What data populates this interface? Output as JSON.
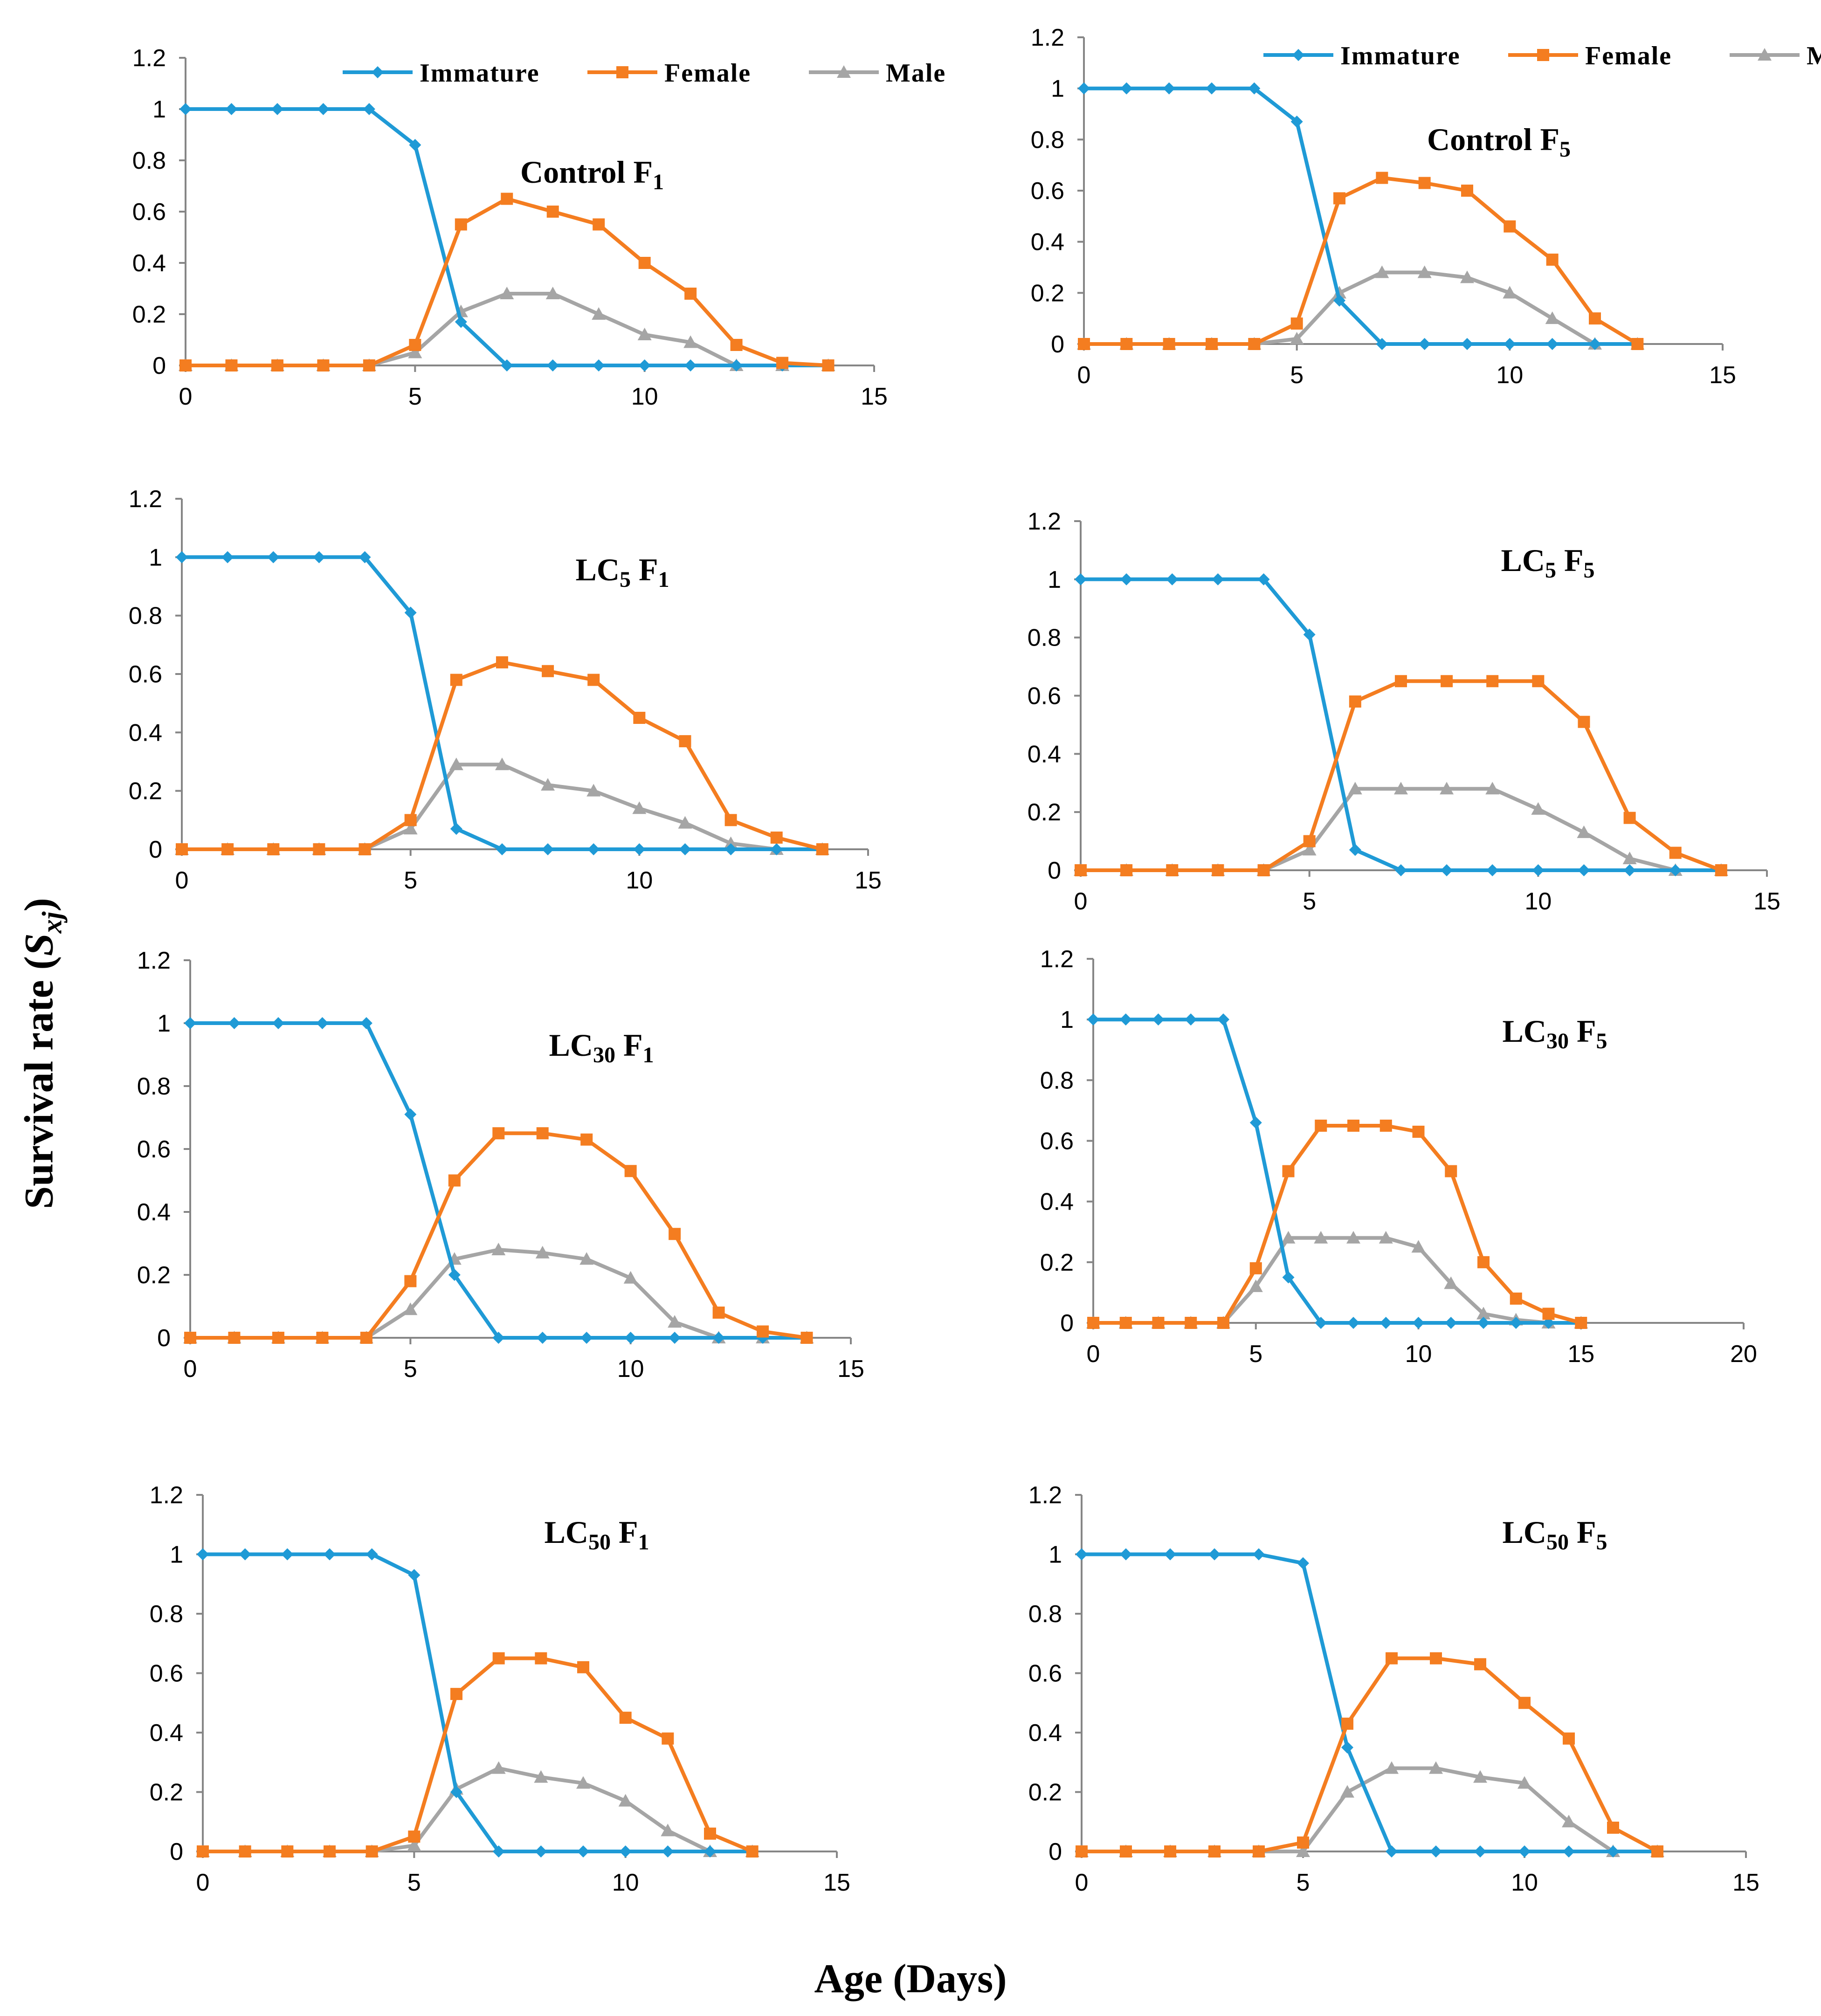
{
  "figure": {
    "xlabel": "Age (Days)",
    "ylabel_main": "Survival rate (",
    "ylabel_var": "S",
    "ylabel_sub": "xj",
    "ylabel_close": ")"
  },
  "legend": [
    {
      "name": "Immature",
      "color": "#1f9ad6",
      "marker": "diamond"
    },
    {
      "name": "Female",
      "color": "#f47d20",
      "marker": "square"
    },
    {
      "name": "Male",
      "color": "#a5a5a5",
      "marker": "triangle"
    }
  ],
  "chart_data": [
    {
      "type": "line",
      "title": "Control F1",
      "title_main": "Control ",
      "title_sub": "",
      "title_gen": "F",
      "title_gen_sub": "1",
      "xlabel": "Age (Days)",
      "ylabel": "Survival rate (Sxj)",
      "xlim": [
        0,
        15
      ],
      "xticks": [
        "0",
        "5",
        "10",
        "15"
      ],
      "ylim": [
        0,
        1.2
      ],
      "yticks": [
        "0",
        "0.2",
        "0.4",
        "0.6",
        "0.8",
        "1",
        "1.2"
      ],
      "legend_shown": true,
      "grid": false,
      "series": [
        {
          "name": "Immature",
          "x": [
            0,
            1,
            2,
            3,
            4,
            5,
            6,
            7,
            8,
            9,
            10,
            11,
            12,
            13,
            14
          ],
          "y": [
            1,
            1,
            1,
            1,
            1,
            0.86,
            0.17,
            0,
            0,
            0,
            0,
            0,
            0,
            0,
            0
          ]
        },
        {
          "name": "Female",
          "x": [
            0,
            1,
            2,
            3,
            4,
            5,
            6,
            7,
            8,
            9,
            10,
            11,
            12,
            13,
            14
          ],
          "y": [
            0,
            0,
            0,
            0,
            0,
            0.08,
            0.55,
            0.65,
            0.6,
            0.55,
            0.4,
            0.28,
            0.08,
            0.01,
            0
          ]
        },
        {
          "name": "Male",
          "x": [
            0,
            1,
            2,
            3,
            4,
            5,
            6,
            7,
            8,
            9,
            10,
            11,
            12,
            13,
            14
          ],
          "y": [
            0,
            0,
            0,
            0,
            0,
            0.05,
            0.21,
            0.28,
            0.28,
            0.2,
            0.12,
            0.09,
            0,
            0,
            0
          ]
        }
      ]
    },
    {
      "type": "line",
      "title": "Control F5",
      "title_main": "Control ",
      "title_sub": "",
      "title_gen": "F",
      "title_gen_sub": "5",
      "xlabel": "Age (Days)",
      "ylabel": "Survival rate (Sxj)",
      "xlim": [
        0,
        15
      ],
      "xticks": [
        "0",
        "5",
        "10",
        "15"
      ],
      "ylim": [
        0,
        1.2
      ],
      "yticks": [
        "0",
        "0.2",
        "0.4",
        "0.6",
        "0.8",
        "1",
        "1.2"
      ],
      "legend_shown": true,
      "grid": false,
      "series": [
        {
          "name": "Immature",
          "x": [
            0,
            1,
            2,
            3,
            4,
            5,
            6,
            7,
            8,
            9,
            10,
            11,
            12,
            13
          ],
          "y": [
            1,
            1,
            1,
            1,
            1,
            0.87,
            0.17,
            0,
            0,
            0,
            0,
            0,
            0,
            0
          ]
        },
        {
          "name": "Female",
          "x": [
            0,
            1,
            2,
            3,
            4,
            5,
            6,
            7,
            8,
            9,
            10,
            11,
            12,
            13
          ],
          "y": [
            0,
            0,
            0,
            0,
            0,
            0.08,
            0.57,
            0.65,
            0.63,
            0.6,
            0.46,
            0.33,
            0.1,
            0
          ]
        },
        {
          "name": "Male",
          "x": [
            0,
            1,
            2,
            3,
            4,
            5,
            6,
            7,
            8,
            9,
            10,
            11,
            12,
            13
          ],
          "y": [
            0,
            0,
            0,
            0,
            0,
            0.02,
            0.2,
            0.28,
            0.28,
            0.26,
            0.2,
            0.1,
            0,
            0
          ]
        }
      ]
    },
    {
      "type": "line",
      "title": "LC5 F1",
      "title_main": "LC",
      "title_sub": "5",
      "title_gen": "F",
      "title_gen_sub": "1",
      "xlabel": "Age (Days)",
      "ylabel": "Survival rate (Sxj)",
      "xlim": [
        0,
        15
      ],
      "xticks": [
        "0",
        "5",
        "10",
        "15"
      ],
      "ylim": [
        0,
        1.2
      ],
      "yticks": [
        "0",
        "0.2",
        "0.4",
        "0.6",
        "0.8",
        "1",
        "1.2"
      ],
      "legend_shown": false,
      "grid": false,
      "series": [
        {
          "name": "Immature",
          "x": [
            0,
            1,
            2,
            3,
            4,
            5,
            6,
            7,
            8,
            9,
            10,
            11,
            12,
            13,
            14
          ],
          "y": [
            1,
            1,
            1,
            1,
            1,
            0.81,
            0.07,
            0,
            0,
            0,
            0,
            0,
            0,
            0,
            0
          ]
        },
        {
          "name": "Female",
          "x": [
            0,
            1,
            2,
            3,
            4,
            5,
            6,
            7,
            8,
            9,
            10,
            11,
            12,
            13,
            14
          ],
          "y": [
            0,
            0,
            0,
            0,
            0,
            0.1,
            0.58,
            0.64,
            0.61,
            0.58,
            0.45,
            0.37,
            0.1,
            0.04,
            0
          ]
        },
        {
          "name": "Male",
          "x": [
            0,
            1,
            2,
            3,
            4,
            5,
            6,
            7,
            8,
            9,
            10,
            11,
            12,
            13,
            14
          ],
          "y": [
            0,
            0,
            0,
            0,
            0,
            0.07,
            0.29,
            0.29,
            0.22,
            0.2,
            0.14,
            0.09,
            0.02,
            0,
            0
          ]
        }
      ]
    },
    {
      "type": "line",
      "title": "LC5 F5",
      "title_main": "LC",
      "title_sub": "5",
      "title_gen": "F",
      "title_gen_sub": "5",
      "xlabel": "Age (Days)",
      "ylabel": "Survival rate (Sxj)",
      "xlim": [
        0,
        15
      ],
      "xticks": [
        "0",
        "5",
        "10",
        "15"
      ],
      "ylim": [
        0,
        1.2
      ],
      "yticks": [
        "0",
        "0.2",
        "0.4",
        "0.6",
        "0.8",
        "1",
        "1.2"
      ],
      "legend_shown": false,
      "grid": false,
      "series": [
        {
          "name": "Immature",
          "x": [
            0,
            1,
            2,
            3,
            4,
            5,
            6,
            7,
            8,
            9,
            10,
            11,
            12,
            13,
            14
          ],
          "y": [
            1,
            1,
            1,
            1,
            1,
            0.81,
            0.07,
            0,
            0,
            0,
            0,
            0,
            0,
            0,
            0
          ]
        },
        {
          "name": "Female",
          "x": [
            0,
            1,
            2,
            3,
            4,
            5,
            6,
            7,
            8,
            9,
            10,
            11,
            12,
            13,
            14
          ],
          "y": [
            0,
            0,
            0,
            0,
            0,
            0.1,
            0.58,
            0.65,
            0.65,
            0.65,
            0.65,
            0.51,
            0.18,
            0.06,
            0
          ]
        },
        {
          "name": "Male",
          "x": [
            0,
            1,
            2,
            3,
            4,
            5,
            6,
            7,
            8,
            9,
            10,
            11,
            12,
            13,
            14
          ],
          "y": [
            0,
            0,
            0,
            0,
            0,
            0.07,
            0.28,
            0.28,
            0.28,
            0.28,
            0.21,
            0.13,
            0.04,
            0,
            0
          ]
        }
      ]
    },
    {
      "type": "line",
      "title": "LC30 F1",
      "title_main": "LC",
      "title_sub": "30",
      "title_gen": "F",
      "title_gen_sub": "1",
      "xlabel": "Age (Days)",
      "ylabel": "Survival rate (Sxj)",
      "xlim": [
        0,
        15
      ],
      "xticks": [
        "0",
        "5",
        "10",
        "15"
      ],
      "ylim": [
        0,
        1.2
      ],
      "yticks": [
        "0",
        "0.2",
        "0.4",
        "0.6",
        "0.8",
        "1",
        "1.2"
      ],
      "legend_shown": false,
      "grid": false,
      "series": [
        {
          "name": "Immature",
          "x": [
            0,
            1,
            2,
            3,
            4,
            5,
            6,
            7,
            8,
            9,
            10,
            11,
            12,
            13,
            14
          ],
          "y": [
            1,
            1,
            1,
            1,
            1,
            0.71,
            0.2,
            0,
            0,
            0,
            0,
            0,
            0,
            0,
            0
          ]
        },
        {
          "name": "Female",
          "x": [
            0,
            1,
            2,
            3,
            4,
            5,
            6,
            7,
            8,
            9,
            10,
            11,
            12,
            13,
            14
          ],
          "y": [
            0,
            0,
            0,
            0,
            0,
            0.18,
            0.5,
            0.65,
            0.65,
            0.63,
            0.53,
            0.33,
            0.08,
            0.02,
            0
          ]
        },
        {
          "name": "Male",
          "x": [
            0,
            1,
            2,
            3,
            4,
            5,
            6,
            7,
            8,
            9,
            10,
            11,
            12,
            13,
            14
          ],
          "y": [
            0,
            0,
            0,
            0,
            0,
            0.09,
            0.25,
            0.28,
            0.27,
            0.25,
            0.19,
            0.05,
            0,
            0,
            0
          ]
        }
      ]
    },
    {
      "type": "line",
      "title": "LC30 F5",
      "title_main": "LC",
      "title_sub": "30",
      "title_gen": "F",
      "title_gen_sub": "5",
      "xlabel": "Age (Days)",
      "ylabel": "Survival rate (Sxj)",
      "xlim": [
        0,
        20
      ],
      "xticks": [
        "0",
        "5",
        "10",
        "15",
        "20"
      ],
      "ylim": [
        0,
        1.2
      ],
      "yticks": [
        "0",
        "0.2",
        "0.4",
        "0.6",
        "0.8",
        "1",
        "1.2"
      ],
      "legend_shown": false,
      "grid": false,
      "series": [
        {
          "name": "Immature",
          "x": [
            0,
            1,
            2,
            3,
            4,
            5,
            6,
            7,
            8,
            9,
            10,
            11,
            12,
            13,
            14,
            15
          ],
          "y": [
            1,
            1,
            1,
            1,
            1,
            0.66,
            0.15,
            0,
            0,
            0,
            0,
            0,
            0,
            0,
            0,
            0
          ]
        },
        {
          "name": "Female",
          "x": [
            0,
            1,
            2,
            3,
            4,
            5,
            6,
            7,
            8,
            9,
            10,
            11,
            12,
            13,
            14,
            15
          ],
          "y": [
            0,
            0,
            0,
            0,
            0,
            0.18,
            0.5,
            0.65,
            0.65,
            0.65,
            0.63,
            0.5,
            0.2,
            0.08,
            0.03,
            0
          ]
        },
        {
          "name": "Male",
          "x": [
            0,
            1,
            2,
            3,
            4,
            5,
            6,
            7,
            8,
            9,
            10,
            11,
            12,
            13,
            14,
            15
          ],
          "y": [
            0,
            0,
            0,
            0,
            0,
            0.12,
            0.28,
            0.28,
            0.28,
            0.28,
            0.25,
            0.13,
            0.03,
            0.01,
            0,
            0
          ]
        }
      ]
    },
    {
      "type": "line",
      "title": "LC50 F1",
      "title_main": "LC",
      "title_sub": "50",
      "title_gen": "F",
      "title_gen_sub": "1",
      "xlabel": "Age (Days)",
      "ylabel": "Survival rate (Sxj)",
      "xlim": [
        0,
        15
      ],
      "xticks": [
        "0",
        "5",
        "10",
        "15"
      ],
      "ylim": [
        0,
        1.2
      ],
      "yticks": [
        "0",
        "0.2",
        "0.4",
        "0.6",
        "0.8",
        "1",
        "1.2"
      ],
      "legend_shown": false,
      "grid": false,
      "series": [
        {
          "name": "Immature",
          "x": [
            0,
            1,
            2,
            3,
            4,
            5,
            6,
            7,
            8,
            9,
            10,
            11,
            12,
            13
          ],
          "y": [
            1,
            1,
            1,
            1,
            1,
            0.93,
            0.2,
            0,
            0,
            0,
            0,
            0,
            0,
            0
          ]
        },
        {
          "name": "Female",
          "x": [
            0,
            1,
            2,
            3,
            4,
            5,
            6,
            7,
            8,
            9,
            10,
            11,
            12,
            13
          ],
          "y": [
            0,
            0,
            0,
            0,
            0,
            0.05,
            0.53,
            0.65,
            0.65,
            0.62,
            0.45,
            0.38,
            0.06,
            0
          ]
        },
        {
          "name": "Male",
          "x": [
            0,
            1,
            2,
            3,
            4,
            5,
            6,
            7,
            8,
            9,
            10,
            11,
            12,
            13
          ],
          "y": [
            0,
            0,
            0,
            0,
            0,
            0.02,
            0.21,
            0.28,
            0.25,
            0.23,
            0.17,
            0.07,
            0,
            0
          ]
        }
      ]
    },
    {
      "type": "line",
      "title": "LC50 F5",
      "title_main": "LC",
      "title_sub": "50",
      "title_gen": "F",
      "title_gen_sub": "5",
      "xlabel": "Age (Days)",
      "ylabel": "Survival rate (Sxj)",
      "xlim": [
        0,
        15
      ],
      "xticks": [
        "0",
        "5",
        "10",
        "15"
      ],
      "ylim": [
        0,
        1.2
      ],
      "yticks": [
        "0",
        "0.2",
        "0.4",
        "0.6",
        "0.8",
        "1",
        "1.2"
      ],
      "legend_shown": false,
      "grid": false,
      "series": [
        {
          "name": "Immature",
          "x": [
            0,
            1,
            2,
            3,
            4,
            5,
            6,
            7,
            8,
            9,
            10,
            11,
            12,
            13
          ],
          "y": [
            1,
            1,
            1,
            1,
            1,
            0.97,
            0.35,
            0,
            0,
            0,
            0,
            0,
            0,
            0
          ]
        },
        {
          "name": "Female",
          "x": [
            0,
            1,
            2,
            3,
            4,
            5,
            6,
            7,
            8,
            9,
            10,
            11,
            12,
            13
          ],
          "y": [
            0,
            0,
            0,
            0,
            0,
            0.03,
            0.43,
            0.65,
            0.65,
            0.63,
            0.5,
            0.38,
            0.08,
            0
          ]
        },
        {
          "name": "Male",
          "x": [
            0,
            1,
            2,
            3,
            4,
            5,
            6,
            7,
            8,
            9,
            10,
            11,
            12,
            13
          ],
          "y": [
            0,
            0,
            0,
            0,
            0,
            0,
            0.2,
            0.28,
            0.28,
            0.25,
            0.23,
            0.1,
            0,
            0
          ]
        }
      ]
    }
  ]
}
